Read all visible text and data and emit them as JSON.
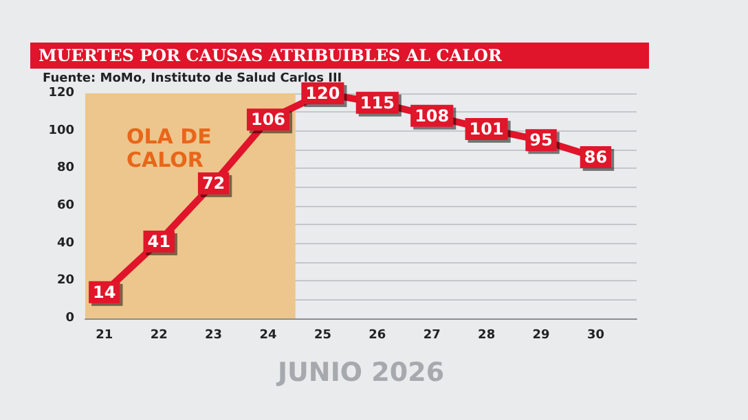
{
  "chart_data": {
    "type": "line",
    "title": "MUERTES POR CAUSAS ATRIBUIBLES AL CALOR",
    "subtitle": "Fuente: MoMo, Instituto de Salud Carlos III",
    "xlabel": "JUNIO 2026",
    "x": [
      21,
      22,
      23,
      24,
      25,
      26,
      27,
      28,
      29,
      30
    ],
    "series": [
      {
        "color": "#e0142a",
        "values": [
          14,
          41,
          72,
          106,
          120,
          115,
          108,
          101,
          95,
          86
        ]
      }
    ],
    "xlim": [
      20.65,
      30.75
    ],
    "xticks": [
      21,
      22,
      23,
      24,
      25,
      26,
      27,
      28,
      29,
      30
    ],
    "ylim": [
      0,
      120
    ],
    "yticks": [
      0,
      {
        "value": 10,
        "label": null
      },
      20,
      {
        "value": 30,
        "label": null
      },
      40,
      {
        "value": 50,
        "label": null
      },
      60,
      {
        "value": 70,
        "label": null
      },
      80,
      {
        "value": 90,
        "label": null
      },
      100,
      {
        "value": 110,
        "label": null
      },
      120
    ],
    "bands": [
      {
        "axis": "x",
        "from": 20.65,
        "to": 24.5,
        "label": "OLA DE CALOR",
        "color": "#ecc68c"
      }
    ],
    "data_labels": true,
    "grid": "y",
    "marker": "square",
    "line_style": "solid"
  }
}
